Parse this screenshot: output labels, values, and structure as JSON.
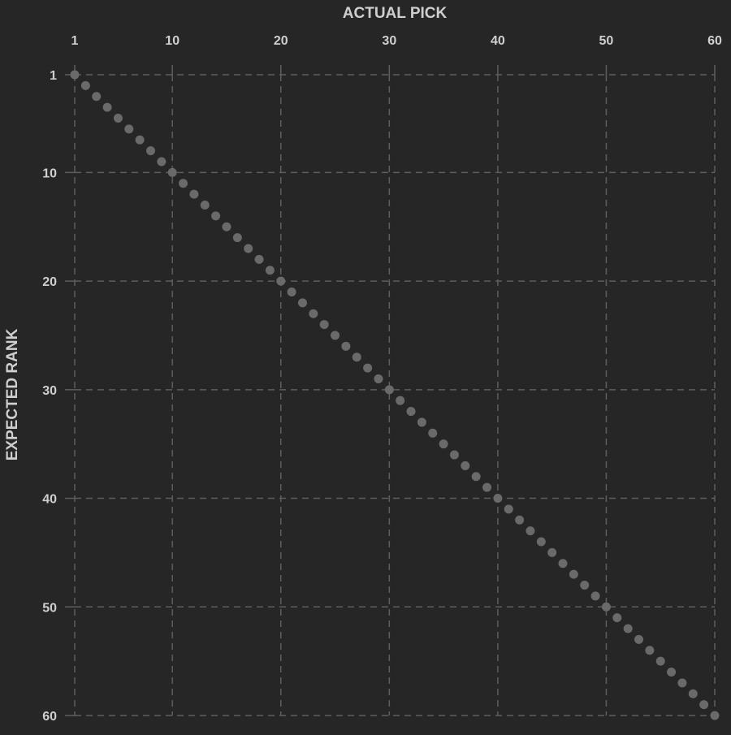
{
  "chart_data": {
    "type": "scatter",
    "title": "",
    "xlabel": "ACTUAL PICK",
    "ylabel": "EXPECTED RANK",
    "x_axis_position": "top",
    "y_axis_inverted": true,
    "xlim": [
      1,
      60
    ],
    "ylim": [
      1,
      60
    ],
    "xticks": [
      1,
      10,
      20,
      30,
      40,
      50,
      60
    ],
    "yticks": [
      1,
      10,
      20,
      30,
      40,
      50,
      60
    ],
    "grid": true,
    "grid_style": "dashed",
    "colors": {
      "background": "#262626",
      "grid": "#5e5e5e",
      "text": "#cfcfcf",
      "point": "#6a6a6a"
    },
    "series": [
      {
        "points": [
          [
            1,
            1
          ],
          [
            2,
            2
          ],
          [
            3,
            3
          ],
          [
            4,
            4
          ],
          [
            5,
            5
          ],
          [
            6,
            6
          ],
          [
            7,
            7
          ],
          [
            8,
            8
          ],
          [
            9,
            9
          ],
          [
            10,
            10
          ],
          [
            11,
            11
          ],
          [
            12,
            12
          ],
          [
            13,
            13
          ],
          [
            14,
            14
          ],
          [
            15,
            15
          ],
          [
            16,
            16
          ],
          [
            17,
            17
          ],
          [
            18,
            18
          ],
          [
            19,
            19
          ],
          [
            20,
            20
          ],
          [
            21,
            21
          ],
          [
            22,
            22
          ],
          [
            23,
            23
          ],
          [
            24,
            24
          ],
          [
            25,
            25
          ],
          [
            26,
            26
          ],
          [
            27,
            27
          ],
          [
            28,
            28
          ],
          [
            29,
            29
          ],
          [
            30,
            30
          ],
          [
            31,
            31
          ],
          [
            32,
            32
          ],
          [
            33,
            33
          ],
          [
            34,
            34
          ],
          [
            35,
            35
          ],
          [
            36,
            36
          ],
          [
            37,
            37
          ],
          [
            38,
            38
          ],
          [
            39,
            39
          ],
          [
            40,
            40
          ],
          [
            41,
            41
          ],
          [
            42,
            42
          ],
          [
            43,
            43
          ],
          [
            44,
            44
          ],
          [
            45,
            45
          ],
          [
            46,
            46
          ],
          [
            47,
            47
          ],
          [
            48,
            48
          ],
          [
            49,
            49
          ],
          [
            50,
            50
          ],
          [
            51,
            51
          ],
          [
            52,
            52
          ],
          [
            53,
            53
          ],
          [
            54,
            54
          ],
          [
            55,
            55
          ],
          [
            56,
            56
          ],
          [
            57,
            57
          ],
          [
            58,
            58
          ],
          [
            59,
            59
          ],
          [
            60,
            60
          ]
        ]
      }
    ]
  }
}
